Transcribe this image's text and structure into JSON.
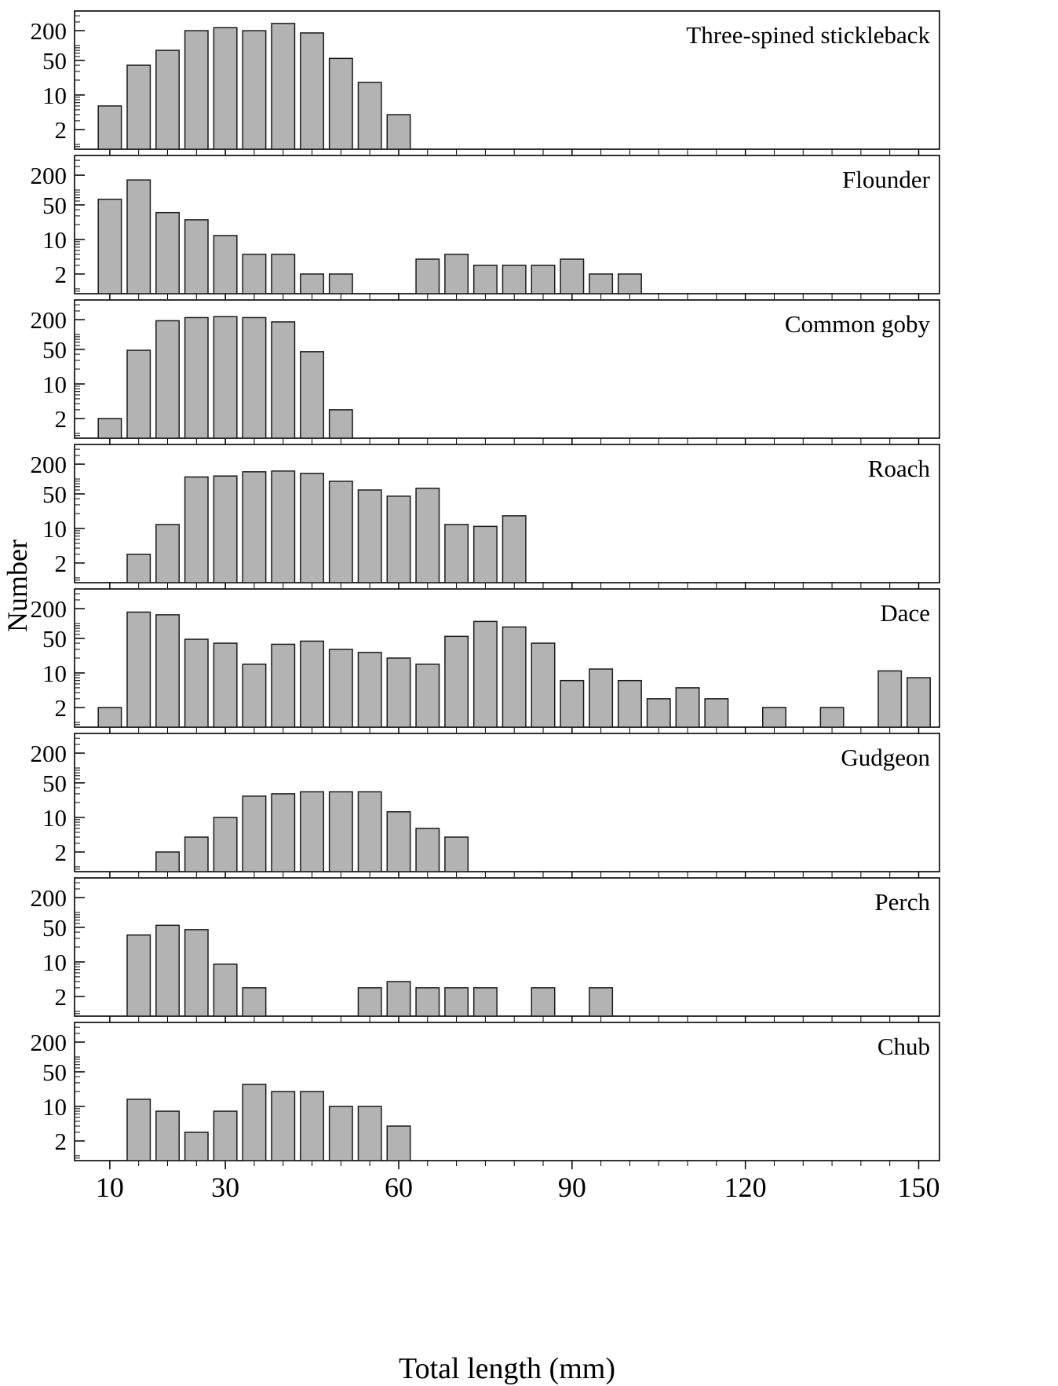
{
  "chart_data": {
    "type": "bar",
    "subtype": "stacked length-frequency histogram panels (one per fish species)",
    "title": "",
    "xlabel": "Total length (mm)",
    "ylabel": "Number",
    "x_scale": "linear",
    "y_scale": "log",
    "xlim": [
      3.9,
      153.6
    ],
    "ylim": [
      0.8,
      500
    ],
    "x_major_ticks": [
      10,
      30,
      60,
      90,
      120,
      150
    ],
    "x_minor_tick_step": 5,
    "y_labeled_ticks": [
      2,
      10,
      50,
      200
    ],
    "bar_width_mm": 4,
    "bar_fill": "#b3b3b3",
    "bar_stroke": "#1c1c1c",
    "frame_color": "#000000",
    "grid": false,
    "legend": false,
    "panels": [
      {
        "species": "Three-spined stickleback",
        "lengths_mm": [
          10,
          15,
          20,
          25,
          30,
          35,
          40,
          45,
          50,
          55,
          60
        ],
        "counts": [
          6,
          40,
          80,
          200,
          230,
          200,
          280,
          180,
          55,
          18,
          4
        ]
      },
      {
        "species": "Flounder",
        "lengths_mm": [
          10,
          15,
          20,
          25,
          30,
          35,
          40,
          45,
          50,
          65,
          70,
          75,
          80,
          85,
          90,
          95,
          100
        ],
        "counts": [
          65,
          160,
          35,
          25,
          12,
          5,
          5,
          2,
          2,
          4,
          5,
          3,
          3,
          3,
          4,
          2,
          2
        ]
      },
      {
        "species": "Common goby",
        "lengths_mm": [
          10,
          15,
          20,
          25,
          30,
          35,
          40,
          45,
          50
        ],
        "counts": [
          2,
          48,
          190,
          220,
          230,
          220,
          180,
          45,
          3
        ]
      },
      {
        "species": "Roach",
        "lengths_mm": [
          15,
          20,
          25,
          30,
          35,
          40,
          45,
          50,
          55,
          60,
          65,
          70,
          75,
          80
        ],
        "counts": [
          3,
          12,
          110,
          115,
          140,
          145,
          130,
          90,
          60,
          45,
          65,
          12,
          11,
          18
        ]
      },
      {
        "species": "Dace",
        "lengths_mm": [
          10,
          15,
          20,
          25,
          30,
          35,
          40,
          45,
          50,
          55,
          60,
          65,
          70,
          75,
          80,
          85,
          90,
          95,
          100,
          105,
          110,
          115,
          125,
          135,
          145,
          150
        ],
        "counts": [
          2,
          170,
          150,
          48,
          40,
          15,
          38,
          44,
          30,
          26,
          20,
          15,
          55,
          110,
          85,
          40,
          7,
          12,
          7,
          3,
          5,
          3,
          2,
          2,
          11,
          8
        ]
      },
      {
        "species": "Gudgeon",
        "lengths_mm": [
          20,
          25,
          30,
          35,
          40,
          45,
          50,
          55,
          60,
          65,
          70
        ],
        "counts": [
          2,
          4,
          10,
          27,
          30,
          33,
          33,
          33,
          13,
          6,
          4
        ]
      },
      {
        "species": "Perch",
        "lengths_mm": [
          15,
          20,
          25,
          30,
          35,
          55,
          60,
          65,
          70,
          75,
          85,
          95
        ],
        "counts": [
          35,
          55,
          45,
          9,
          3,
          3,
          4,
          3,
          3,
          3,
          3,
          3
        ]
      },
      {
        "species": "Chub",
        "lengths_mm": [
          15,
          20,
          25,
          30,
          35,
          40,
          45,
          50,
          55,
          60
        ],
        "counts": [
          14,
          8,
          3,
          8,
          28,
          20,
          20,
          10,
          10,
          4
        ]
      }
    ]
  }
}
